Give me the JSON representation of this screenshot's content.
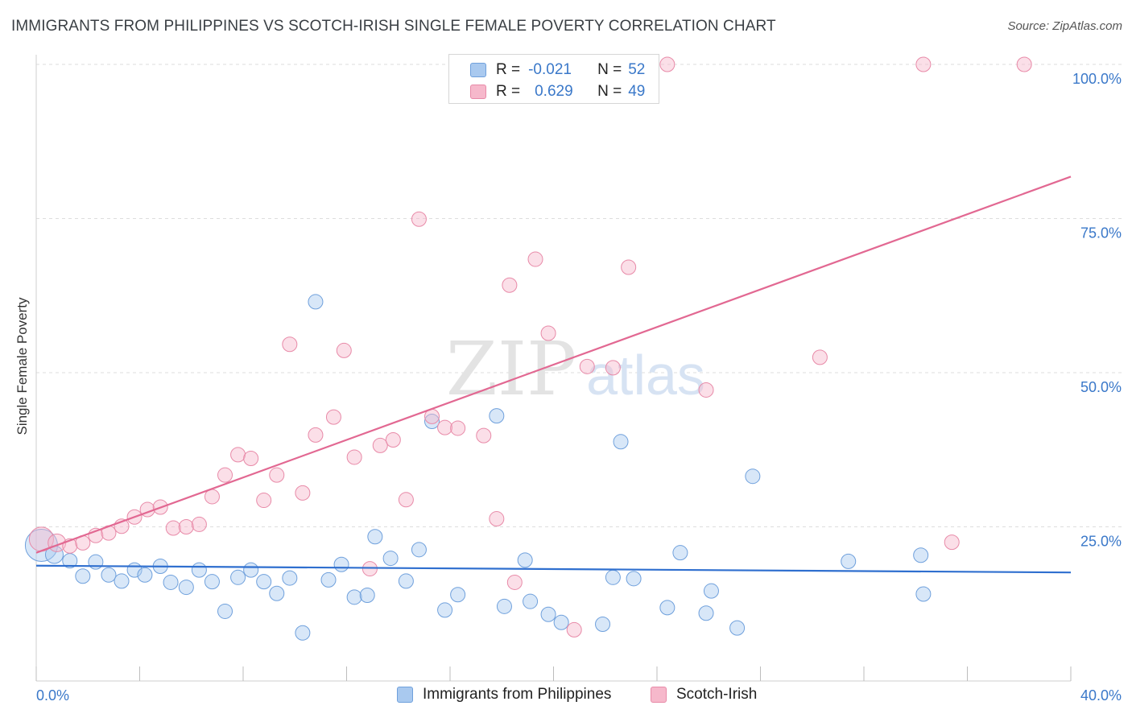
{
  "title": "IMMIGRANTS FROM PHILIPPINES VS SCOTCH-IRISH SINGLE FEMALE POVERTY CORRELATION CHART",
  "source": "Source: ZipAtlas.com",
  "watermark": {
    "zip": "ZIP",
    "atlas": "atlas"
  },
  "legend": {
    "r_label": "R =",
    "n_label": "N =",
    "series": [
      {
        "name": "Immigrants from Philippines",
        "r": "-0.021",
        "n": "52",
        "color": "#a9c9ef",
        "edge": "#6fa0dc"
      },
      {
        "name": "Scotch-Irish",
        "r": "0.629",
        "n": "49",
        "color": "#f6b8cb",
        "edge": "#e88aa8"
      }
    ]
  },
  "chart_data": {
    "type": "scatter",
    "title": "IMMIGRANTS FROM PHILIPPINES VS SCOTCH-IRISH SINGLE FEMALE POVERTY CORRELATION CHART",
    "xlabel": "",
    "ylabel": "Single Female Poverty",
    "xlim": [
      0,
      40
    ],
    "ylim": [
      0,
      100
    ],
    "x_tick_labels": [
      "0.0%",
      "40.0%"
    ],
    "y_ticks": [
      25,
      50,
      75,
      100
    ],
    "y_tick_labels": [
      "25.0%",
      "50.0%",
      "75.0%",
      "100.0%"
    ],
    "grid": true,
    "legend_position": "top-center",
    "series": [
      {
        "name": "Immigrants from Philippines",
        "color": "#6fa0dc",
        "trend": {
          "x": [
            0,
            40
          ],
          "y": [
            18.7,
            17.6
          ],
          "color": "#2f6fcf"
        },
        "points": [
          [
            0.2,
            22,
            20
          ],
          [
            0.7,
            20.5,
            11
          ],
          [
            1.3,
            19.5,
            9
          ],
          [
            1.8,
            17,
            9
          ],
          [
            2.3,
            19.3,
            9
          ],
          [
            2.8,
            17.2,
            9
          ],
          [
            3.3,
            16.2,
            9
          ],
          [
            3.8,
            18,
            9
          ],
          [
            4.2,
            17.2,
            9
          ],
          [
            4.8,
            18.6,
            9
          ],
          [
            5.2,
            16,
            9
          ],
          [
            5.8,
            15.2,
            9
          ],
          [
            6.3,
            18,
            9
          ],
          [
            6.8,
            16.1,
            9
          ],
          [
            7.3,
            11.3,
            9
          ],
          [
            7.8,
            16.8,
            9
          ],
          [
            8.3,
            18,
            9
          ],
          [
            8.8,
            16.1,
            9
          ],
          [
            9.3,
            14.2,
            9
          ],
          [
            9.8,
            16.7,
            9
          ],
          [
            10.3,
            7.8,
            9
          ],
          [
            10.8,
            61.5,
            9
          ],
          [
            11.3,
            16.4,
            9
          ],
          [
            11.8,
            18.9,
            9
          ],
          [
            12.3,
            13.6,
            9
          ],
          [
            12.8,
            13.9,
            9
          ],
          [
            13.1,
            23.4,
            9
          ],
          [
            13.7,
            19.9,
            9
          ],
          [
            14.3,
            16.2,
            9
          ],
          [
            14.8,
            21.3,
            9
          ],
          [
            15.3,
            42.1,
            9
          ],
          [
            15.8,
            11.5,
            9
          ],
          [
            16.3,
            14,
            9
          ],
          [
            17.8,
            43,
            9
          ],
          [
            18.1,
            12.1,
            9
          ],
          [
            18.9,
            19.6,
            9
          ],
          [
            19.1,
            12.9,
            9
          ],
          [
            19.8,
            10.8,
            9
          ],
          [
            20.3,
            9.5,
            9
          ],
          [
            21.9,
            9.2,
            9
          ],
          [
            22.6,
            38.8,
            9
          ],
          [
            22.3,
            16.8,
            9
          ],
          [
            23.1,
            16.6,
            9
          ],
          [
            24.4,
            11.9,
            9
          ],
          [
            24.9,
            20.8,
            9
          ],
          [
            25.9,
            11,
            9
          ],
          [
            26.1,
            14.6,
            9
          ],
          [
            27.1,
            8.6,
            9
          ],
          [
            27.7,
            33.2,
            9
          ],
          [
            31.4,
            19.4,
            9
          ],
          [
            34.2,
            20.4,
            9
          ],
          [
            34.3,
            14.1,
            9
          ]
        ]
      },
      {
        "name": "Scotch-Irish",
        "color": "#e88aa8",
        "trend": {
          "x": [
            0,
            40
          ],
          "y": [
            20.8,
            81.8
          ],
          "color": "#e26892"
        },
        "points": [
          [
            0.2,
            23,
            15
          ],
          [
            0.8,
            22.4,
            11
          ],
          [
            1.3,
            21.9,
            9
          ],
          [
            1.8,
            22.4,
            9
          ],
          [
            2.3,
            23.6,
            9
          ],
          [
            2.8,
            24,
            9
          ],
          [
            3.3,
            25.1,
            9
          ],
          [
            3.8,
            26.6,
            9
          ],
          [
            4.3,
            27.8,
            9
          ],
          [
            4.8,
            28.2,
            9
          ],
          [
            5.3,
            24.8,
            9
          ],
          [
            5.8,
            25,
            9
          ],
          [
            6.3,
            25.4,
            9
          ],
          [
            6.8,
            29.9,
            9
          ],
          [
            7.3,
            33.4,
            9
          ],
          [
            7.8,
            36.7,
            9
          ],
          [
            8.3,
            36.1,
            9
          ],
          [
            8.8,
            29.3,
            9
          ],
          [
            9.3,
            33.4,
            9
          ],
          [
            9.8,
            54.6,
            9
          ],
          [
            10.3,
            30.5,
            9
          ],
          [
            10.8,
            39.9,
            9
          ],
          [
            11.5,
            42.8,
            9
          ],
          [
            11.9,
            53.6,
            9
          ],
          [
            12.3,
            36.3,
            9
          ],
          [
            12.9,
            18.2,
            9
          ],
          [
            13.3,
            38.2,
            9
          ],
          [
            13.8,
            39.1,
            9
          ],
          [
            14.3,
            29.4,
            9
          ],
          [
            14.8,
            74.9,
            9
          ],
          [
            15.3,
            42.9,
            9
          ],
          [
            15.8,
            41.1,
            9
          ],
          [
            16.3,
            41,
            9
          ],
          [
            17.3,
            39.8,
            9
          ],
          [
            17.8,
            26.3,
            9
          ],
          [
            18.3,
            64.2,
            9
          ],
          [
            18.5,
            16,
            9
          ],
          [
            19.3,
            68.4,
            9
          ],
          [
            19.8,
            56.4,
            9
          ],
          [
            20.8,
            8.3,
            9
          ],
          [
            21.3,
            51,
            9
          ],
          [
            22.3,
            50.8,
            9
          ],
          [
            22.9,
            67.1,
            9
          ],
          [
            24.4,
            100,
            9
          ],
          [
            25.9,
            47.2,
            9
          ],
          [
            30.3,
            52.5,
            9
          ],
          [
            34.3,
            100,
            9
          ],
          [
            35.4,
            22.5,
            9
          ],
          [
            38.2,
            100,
            9
          ]
        ]
      }
    ]
  }
}
